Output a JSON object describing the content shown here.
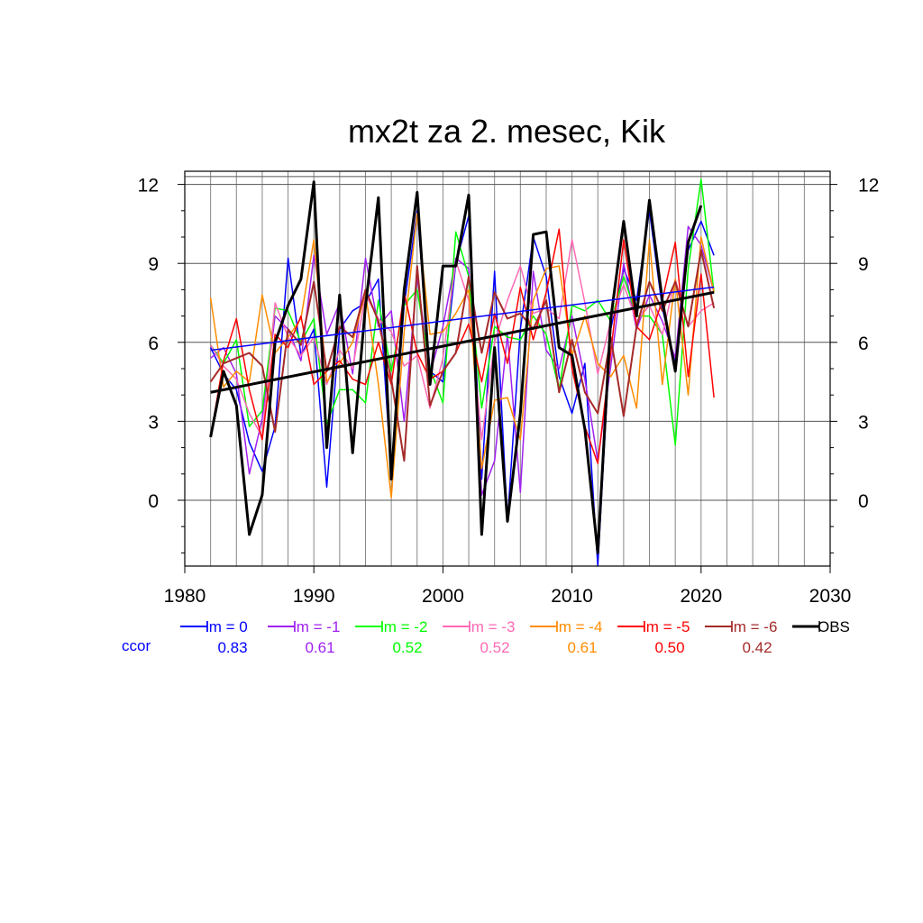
{
  "chart_data": {
    "type": "line",
    "title": "mx2t za 2. mesec, Kik",
    "xlabel": "",
    "ylabel": "",
    "xlim": [
      1980,
      2030
    ],
    "ylim": [
      -2.5,
      12.5
    ],
    "xticks": [
      1980,
      1990,
      2000,
      2010,
      2020,
      2030
    ],
    "yticks": [
      0,
      3,
      6,
      9,
      12
    ],
    "grid": true,
    "legend_position": "bottom",
    "ccor_label": "ccor",
    "x": [
      1982,
      1983,
      1984,
      1985,
      1986,
      1987,
      1988,
      1989,
      1990,
      1991,
      1992,
      1993,
      1994,
      1995,
      1996,
      1997,
      1998,
      1999,
      2000,
      2001,
      2002,
      2003,
      2004,
      2005,
      2006,
      2007,
      2008,
      2009,
      2010,
      2011,
      2012,
      2013,
      2014,
      2015,
      2016,
      2017,
      2018,
      2019,
      2020,
      2021
    ],
    "series": [
      {
        "name": "lm = 0",
        "color": "#0000ff",
        "width": 1.5,
        "ccor": "0.83",
        "values": [
          5.8,
          4.8,
          4.2,
          2.2,
          1.1,
          2.8,
          9.2,
          5.5,
          6.5,
          0.5,
          6.5,
          7.2,
          7.5,
          8.4,
          1.0,
          7.4,
          11.0,
          4.9,
          4.5,
          9.0,
          10.8,
          0.8,
          8.7,
          -0.8,
          6.5,
          10.0,
          8.5,
          4.7,
          3.3,
          5.2,
          -2.5,
          6.5,
          8.8,
          7.6,
          11.0,
          7.3,
          5.2,
          9.5,
          10.6,
          9.3
        ],
        "trend": [
          5.7,
          8.1
        ]
      },
      {
        "name": "lm = -1",
        "color": "#a020f0",
        "width": 1.5,
        "ccor": "0.61",
        "values": [
          5.4,
          5.8,
          4.8,
          1.0,
          3.1,
          7.0,
          6.5,
          5.3,
          9.3,
          6.3,
          7.5,
          4.8,
          9.2,
          6.6,
          7.2,
          3.0,
          8.5,
          4.8,
          6.6,
          9.2,
          8.8,
          0.2,
          1.5,
          6.3,
          0.3,
          8.7,
          5.7,
          5.0,
          7.0,
          4.6,
          1.5,
          5.1,
          9.0,
          6.5,
          7.8,
          6.8,
          5.4,
          10.4,
          9.7,
          7.9
        ]
      },
      {
        "name": "lm = -2",
        "color": "#00ff00",
        "width": 1.5,
        "ccor": "0.52",
        "values": [
          5.9,
          5.2,
          6.1,
          2.8,
          3.4,
          7.3,
          7.2,
          6.0,
          6.9,
          2.9,
          4.2,
          4.2,
          3.7,
          7.6,
          4.9,
          7.4,
          8.0,
          5.0,
          3.7,
          10.2,
          8.5,
          3.5,
          6.6,
          6.2,
          6.1,
          7.0,
          6.3,
          4.2,
          7.4,
          7.2,
          7.6,
          6.8,
          8.5,
          7.0,
          7.0,
          6.3,
          2.1,
          8.8,
          12.2,
          7.9
        ]
      },
      {
        "name": "lm = -3",
        "color": "#ff69b4",
        "width": 1.5,
        "ccor": "0.52",
        "values": [
          5.9,
          5.1,
          4.6,
          3.3,
          2.4,
          7.5,
          6.2,
          5.5,
          6.2,
          4.4,
          5.7,
          5.0,
          7.8,
          6.9,
          6.4,
          5.1,
          5.5,
          3.5,
          5.4,
          9.1,
          7.6,
          2.3,
          6.0,
          7.6,
          8.9,
          7.1,
          7.3,
          6.9,
          9.9,
          7.5,
          4.8,
          6.8,
          8.2,
          6.8,
          7.4,
          6.3,
          8.4,
          6.6,
          7.2,
          7.5
        ]
      },
      {
        "name": "lm = -4",
        "color": "#ff8c00",
        "width": 1.5,
        "ccor": "0.61",
        "values": [
          7.7,
          4.3,
          4.9,
          4.5,
          7.8,
          5.6,
          6.2,
          6.9,
          9.9,
          4.5,
          5.2,
          6.0,
          7.9,
          4.4,
          0.1,
          6.4,
          10.9,
          6.3,
          6.4,
          7.1,
          8.0,
          1.2,
          3.8,
          3.9,
          2.3,
          7.6,
          8.8,
          8.9,
          5.5,
          7.0,
          5.2,
          4.7,
          5.5,
          3.5,
          9.9,
          4.4,
          8.4,
          4.0,
          10.0,
          7.9
        ]
      },
      {
        "name": "lm = -5",
        "color": "#ff0000",
        "width": 1.5,
        "ccor": "0.50",
        "values": [
          2.4,
          5.3,
          6.9,
          4.2,
          2.3,
          6.3,
          5.8,
          7.0,
          4.4,
          4.9,
          5.3,
          4.6,
          4.4,
          6.0,
          4.4,
          7.9,
          5.6,
          4.6,
          4.9,
          5.6,
          6.7,
          4.5,
          7.1,
          5.2,
          8.1,
          6.1,
          7.9,
          10.3,
          5.0,
          2.8,
          1.4,
          5.6,
          9.9,
          6.6,
          6.1,
          7.6,
          9.8,
          4.7,
          8.6,
          3.9
        ]
      },
      {
        "name": "lm = -6",
        "color": "#a52a2a",
        "width": 2,
        "ccor": "0.42",
        "values": [
          4.5,
          5.2,
          5.4,
          5.6,
          5.1,
          2.6,
          6.5,
          5.9,
          8.3,
          4.9,
          6.6,
          6.2,
          8.0,
          6.8,
          4.6,
          1.5,
          8.9,
          3.6,
          4.9,
          5.6,
          8.5,
          5.6,
          7.9,
          6.9,
          7.1,
          6.5,
          7.6,
          4.1,
          6.1,
          4.1,
          3.3,
          6.2,
          3.2,
          6.6,
          8.3,
          7.2,
          8.3,
          6.6,
          9.5,
          7.3
        ]
      },
      {
        "name": "OBS",
        "color": "#000000",
        "width": 3,
        "ccor": "",
        "values": [
          2.4,
          4.9,
          3.6,
          -1.3,
          0.2,
          6.0,
          7.4,
          8.4,
          12.1,
          2.0,
          7.8,
          1.8,
          7.4,
          11.5,
          0.8,
          8.0,
          11.7,
          4.4,
          8.9,
          8.9,
          11.6,
          -1.3,
          5.8,
          -0.8,
          3.3,
          10.1,
          10.2,
          5.8,
          5.5,
          2.7,
          -2.0,
          6.9,
          10.6,
          7.0,
          11.4,
          7.6,
          4.9,
          9.8,
          11.2,
          null
        ],
        "trend": [
          4.1,
          7.9
        ]
      }
    ]
  }
}
